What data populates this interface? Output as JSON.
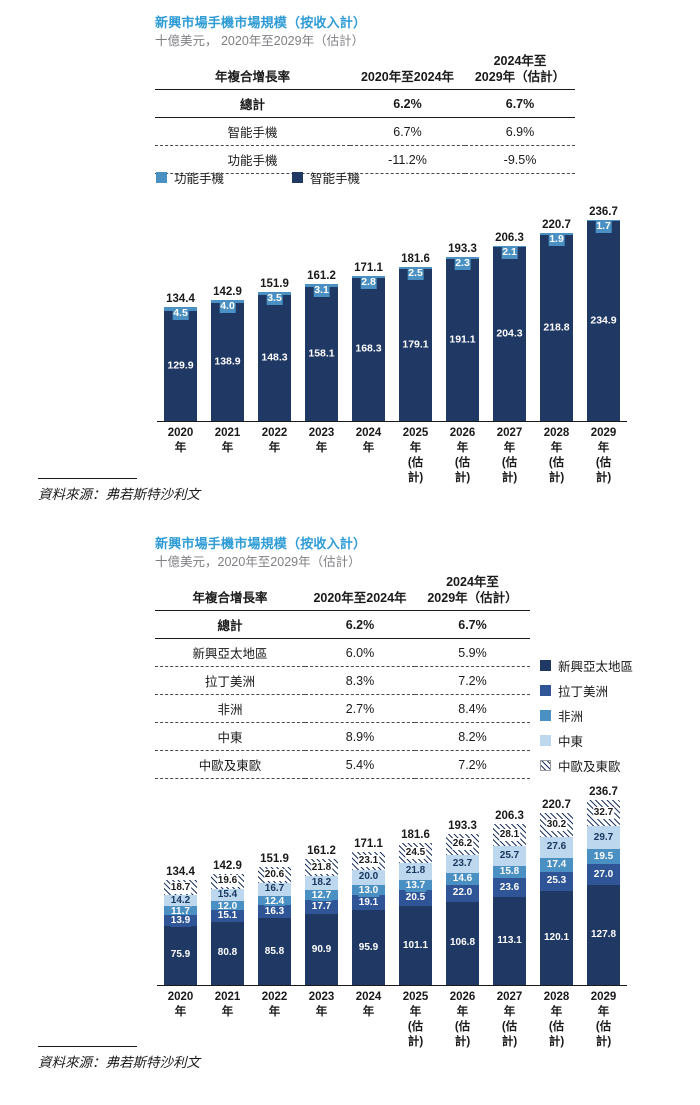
{
  "colors": {
    "title_blue": "#2f9cd6",
    "subtitle_gray": "#7f8084",
    "navy": "#1f3864",
    "mid_blue": "#2f5597",
    "light_blue": "#4a90c2",
    "pale_blue": "#bdd7ee",
    "hatch_fg": "#1f3864",
    "text": "#1a1a1a"
  },
  "section1": {
    "title": "新興市場手機市場規模（按收入計）",
    "subtitle": "十億美元， 2020年至2029年（估計）",
    "table": {
      "header": [
        "年複合增長率",
        "2020年至2024年",
        "2024年至\n2029年（估計）"
      ],
      "rows": [
        {
          "label": "總計",
          "cagr_2020_2024": "6.2%",
          "cagr_2024_2029": "6.7%",
          "bold": true
        },
        {
          "label": "智能手機",
          "cagr_2020_2024": "6.7%",
          "cagr_2024_2029": "6.9%",
          "bold": false
        },
        {
          "label": "功能手機",
          "cagr_2020_2024": "-11.2%",
          "cagr_2024_2029": "-9.5%",
          "bold": false
        }
      ]
    },
    "legend": [
      {
        "label": "功能手機",
        "swatch": "light_blue"
      },
      {
        "label": "智能手機",
        "swatch": "navy"
      }
    ],
    "source": "資料來源：弗若斯特沙利文"
  },
  "section2": {
    "title": "新興市場手機市場規模（按收入計）",
    "subtitle": "十億美元，2020年至2029年（估計）",
    "table": {
      "header": [
        "年複合增長率",
        "2020年至2024年",
        "2024年至\n2029年（估計）"
      ],
      "rows": [
        {
          "label": "總計",
          "cagr_2020_2024": "6.2%",
          "cagr_2024_2029": "6.7%",
          "bold": true
        },
        {
          "label": "新興亞太地區",
          "cagr_2020_2024": "6.0%",
          "cagr_2024_2029": "5.9%",
          "bold": false
        },
        {
          "label": "拉丁美洲",
          "cagr_2020_2024": "8.3%",
          "cagr_2024_2029": "7.2%",
          "bold": false
        },
        {
          "label": "非洲",
          "cagr_2020_2024": "2.7%",
          "cagr_2024_2029": "8.4%",
          "bold": false
        },
        {
          "label": "中東",
          "cagr_2020_2024": "8.9%",
          "cagr_2024_2029": "8.2%",
          "bold": false
        },
        {
          "label": "中歐及東歐",
          "cagr_2020_2024": "5.4%",
          "cagr_2024_2029": "7.2%",
          "bold": false
        }
      ]
    },
    "legend": [
      {
        "label": "新興亞太地區",
        "swatch": "navy"
      },
      {
        "label": "拉丁美洲",
        "swatch": "mid_blue"
      },
      {
        "label": "非洲",
        "swatch": "light_blue"
      },
      {
        "label": "中東",
        "swatch": "pale_blue"
      },
      {
        "label": "中歐及東歐",
        "swatch": "hatch"
      }
    ],
    "source": "資料來源：弗若斯特沙利文"
  },
  "chart_data": [
    {
      "type": "bar",
      "stacked": true,
      "title": "新興市場手機市場規模（按收入計）",
      "ylabel": "十億美元",
      "categories": [
        "2020年",
        "2021年",
        "2022年",
        "2023年",
        "2024年",
        "2025年\n(估計)",
        "2026年\n(估計)",
        "2027年\n(估計)",
        "2028年\n(估計)",
        "2029年\n(估計)"
      ],
      "stack_order": "bottom-to-top",
      "series": [
        {
          "name": "智能手機",
          "swatch": "navy",
          "values": [
            129.9,
            138.9,
            148.3,
            158.1,
            168.3,
            179.1,
            191.1,
            204.3,
            218.8,
            234.9
          ]
        },
        {
          "name": "功能手機",
          "swatch": "light_blue",
          "values": [
            4.5,
            4.0,
            3.5,
            3.1,
            2.8,
            2.5,
            2.3,
            2.1,
            1.9,
            1.7
          ]
        }
      ],
      "totals": [
        134.4,
        142.9,
        151.9,
        161.2,
        171.1,
        181.6,
        193.3,
        206.3,
        220.7,
        236.7
      ],
      "ylim": [
        0,
        240
      ],
      "grid": false,
      "legend_position": "top-left"
    },
    {
      "type": "bar",
      "stacked": true,
      "title": "新興市場手機市場規模（按收入計）",
      "ylabel": "十億美元",
      "categories": [
        "2020年",
        "2021年",
        "2022年",
        "2023年",
        "2024年",
        "2025年\n(估計)",
        "2026年\n(估計)",
        "2027年\n(估計)",
        "2028年\n(估計)",
        "2029年\n(估計)"
      ],
      "stack_order": "bottom-to-top",
      "series": [
        {
          "name": "新興亞太地區",
          "swatch": "navy",
          "values": [
            75.9,
            80.8,
            85.8,
            90.9,
            95.9,
            101.1,
            106.8,
            113.1,
            120.1,
            127.8
          ]
        },
        {
          "name": "拉丁美洲",
          "swatch": "mid_blue",
          "values": [
            13.9,
            15.1,
            16.3,
            17.7,
            19.1,
            20.5,
            22.0,
            23.6,
            25.3,
            27.0
          ]
        },
        {
          "name": "非洲",
          "swatch": "light_blue",
          "values": [
            11.7,
            12.0,
            12.4,
            12.7,
            13.0,
            13.7,
            14.6,
            15.8,
            17.4,
            19.5
          ]
        },
        {
          "name": "中東",
          "swatch": "pale_blue",
          "values": [
            14.2,
            15.4,
            16.7,
            18.2,
            20.0,
            21.8,
            23.7,
            25.7,
            27.6,
            29.7
          ]
        },
        {
          "name": "中歐及東歐",
          "swatch": "hatch",
          "values": [
            18.7,
            19.6,
            20.6,
            21.8,
            23.1,
            24.5,
            26.2,
            28.1,
            30.2,
            32.7
          ]
        }
      ],
      "totals": [
        134.4,
        142.9,
        151.9,
        161.2,
        171.1,
        181.6,
        193.3,
        206.3,
        220.7,
        236.7
      ],
      "ylim": [
        0,
        240
      ],
      "grid": false,
      "legend_position": "right-of-table"
    }
  ]
}
